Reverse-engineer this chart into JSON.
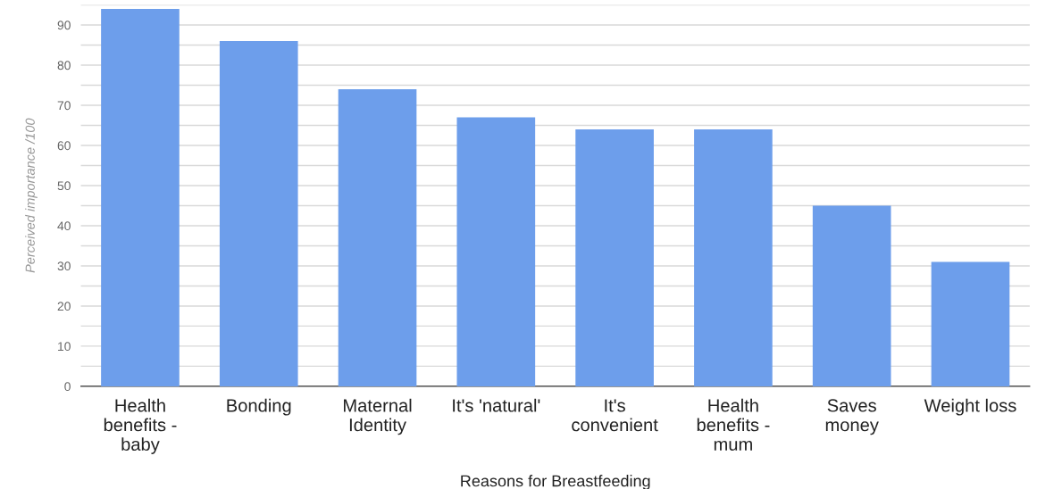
{
  "chart_data": {
    "type": "bar",
    "xlabel": "Reasons for Breastfeeding",
    "ylabel": "Perceived importance /100",
    "categories": [
      "Health benefits - baby",
      "Bonding",
      "Maternal Identity",
      "It's 'natural'",
      "It's convenient",
      "Health benefits - mum",
      "Saves money",
      "Weight loss"
    ],
    "values": [
      94,
      86,
      74,
      67,
      64,
      64,
      45,
      31
    ],
    "color": "#6d9eeb",
    "ylim": [
      0,
      95
    ],
    "yticks": [
      0,
      {
        "value": 5,
        "label": null
      },
      10,
      {
        "value": 15,
        "label": null
      },
      20,
      {
        "value": 25,
        "label": null
      },
      30,
      {
        "value": 35,
        "label": null
      },
      40,
      {
        "value": 45,
        "label": null
      },
      50,
      {
        "value": 55,
        "label": null
      },
      60,
      {
        "value": 65,
        "label": null
      },
      70,
      {
        "value": 75,
        "label": null
      },
      80,
      {
        "value": 85,
        "label": null
      },
      90,
      {
        "value": 95,
        "label": null
      }
    ],
    "grid": "y"
  }
}
